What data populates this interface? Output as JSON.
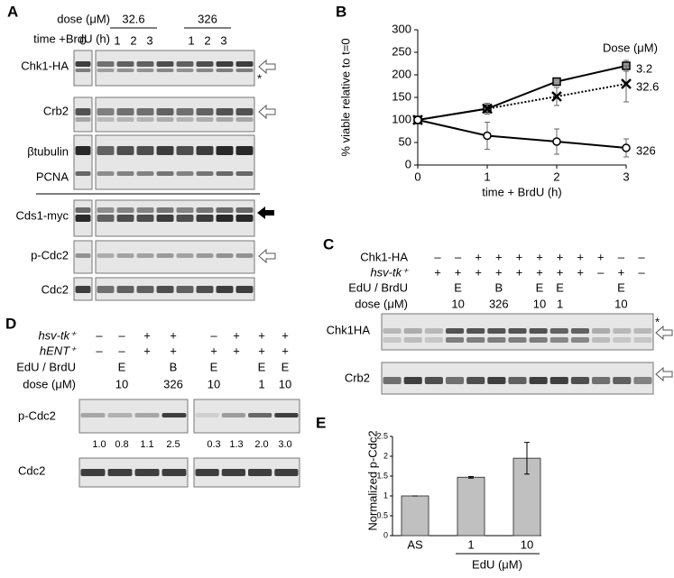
{
  "panel_a": {
    "label": "A",
    "dose_label": "dose (μM)",
    "time_label": "time +BrdU (h)",
    "zero": "0",
    "groups": [
      {
        "dose": "32.6",
        "times": [
          "1",
          "2",
          "3"
        ]
      },
      {
        "dose": "326",
        "times": [
          "1",
          "2",
          "3"
        ]
      }
    ],
    "rows": [
      "Chk1-HA",
      "Crb2",
      "βtubulin",
      "PCNA",
      "Cds1-myc",
      "p-Cdc2",
      "Cdc2"
    ],
    "asterisk": "*"
  },
  "panel_c": {
    "label": "C",
    "row_labels": [
      "Chk1-HA",
      "hsv-tk⁺",
      "EdU / BrdU",
      "dose (μM)"
    ],
    "rows": [
      [
        "–",
        "–",
        "+",
        "+",
        "+",
        "+",
        "+",
        "+",
        "+",
        "–",
        "–"
      ],
      [
        "+",
        "+",
        "+",
        "+",
        "+",
        "+",
        "+",
        "+",
        "–",
        "+",
        "–"
      ],
      [
        null,
        "E",
        null,
        "B",
        null,
        "E",
        "E",
        null,
        null,
        "E",
        null
      ],
      [
        null,
        "10",
        null,
        "326",
        null,
        "10",
        "1",
        null,
        null,
        "10",
        null
      ]
    ],
    "blots": [
      "Chk1HA",
      "Crb2"
    ],
    "asterisk": "*"
  },
  "panel_d": {
    "label": "D",
    "row_labels": [
      "hsv-tk⁺",
      "hENT⁺",
      "EdU / BrdU",
      "dose (μM)"
    ],
    "rows": [
      [
        "–",
        "–",
        "+",
        "+",
        "–",
        "+",
        "+",
        "+"
      ],
      [
        "–",
        "–",
        "+",
        "+",
        "+",
        "+",
        "+",
        "+"
      ],
      [
        null,
        "E",
        null,
        "B",
        "E",
        null,
        "E",
        "E"
      ],
      [
        null,
        "10",
        null,
        "326",
        "10",
        null,
        "1",
        "10"
      ]
    ],
    "blots": [
      "p-Cdc2",
      "Cdc2"
    ],
    "quant": [
      "1.0",
      "0.8",
      "1.1",
      "2.5",
      "0.3",
      "1.3",
      "2.0",
      "3.0"
    ]
  },
  "chart_data": [
    {
      "type": "line",
      "panel_label": "B",
      "ylabel": "% viable relative to t=0",
      "xlabel": "time + BrdU (h)",
      "legend_title": "Dose (μM)",
      "x": [
        0,
        1,
        2,
        3
      ],
      "xlim": [
        0,
        3
      ],
      "xticks": [
        0,
        1,
        2,
        3
      ],
      "ylim": [
        0,
        300
      ],
      "yticks": [
        0,
        50,
        100,
        150,
        200,
        250,
        300
      ],
      "series": [
        {
          "name": "3.2",
          "color": "#000000",
          "marker": "square",
          "marker_fill": "#999999",
          "line_style": "solid",
          "values": [
            100,
            125,
            185,
            220
          ],
          "errors": [
            0,
            8,
            5,
            12
          ]
        },
        {
          "name": "32.6",
          "color": "#000000",
          "marker": "x",
          "marker_fill": "#000000",
          "line_style": "dotted",
          "values": [
            100,
            125,
            152,
            180
          ],
          "errors": [
            0,
            12,
            20,
            40
          ]
        },
        {
          "name": "326",
          "color": "#000000",
          "marker": "circle",
          "marker_fill": "#ffffff",
          "line_style": "solid",
          "values": [
            100,
            65,
            52,
            38
          ],
          "errors": [
            0,
            30,
            28,
            20
          ]
        }
      ]
    },
    {
      "type": "bar",
      "panel_label": "E",
      "ylabel": "Normalized p-Cdc2",
      "xlabel": "EdU (μM)",
      "categories": [
        "AS",
        "1",
        "10"
      ],
      "values": [
        1,
        1.47,
        1.95
      ],
      "errors": [
        0,
        0.02,
        0.4
      ],
      "color": "#c0c0c0",
      "ylim": [
        0,
        2.5
      ],
      "yticks": [
        0,
        0.5,
        1,
        1.5,
        2,
        2.5
      ]
    }
  ]
}
